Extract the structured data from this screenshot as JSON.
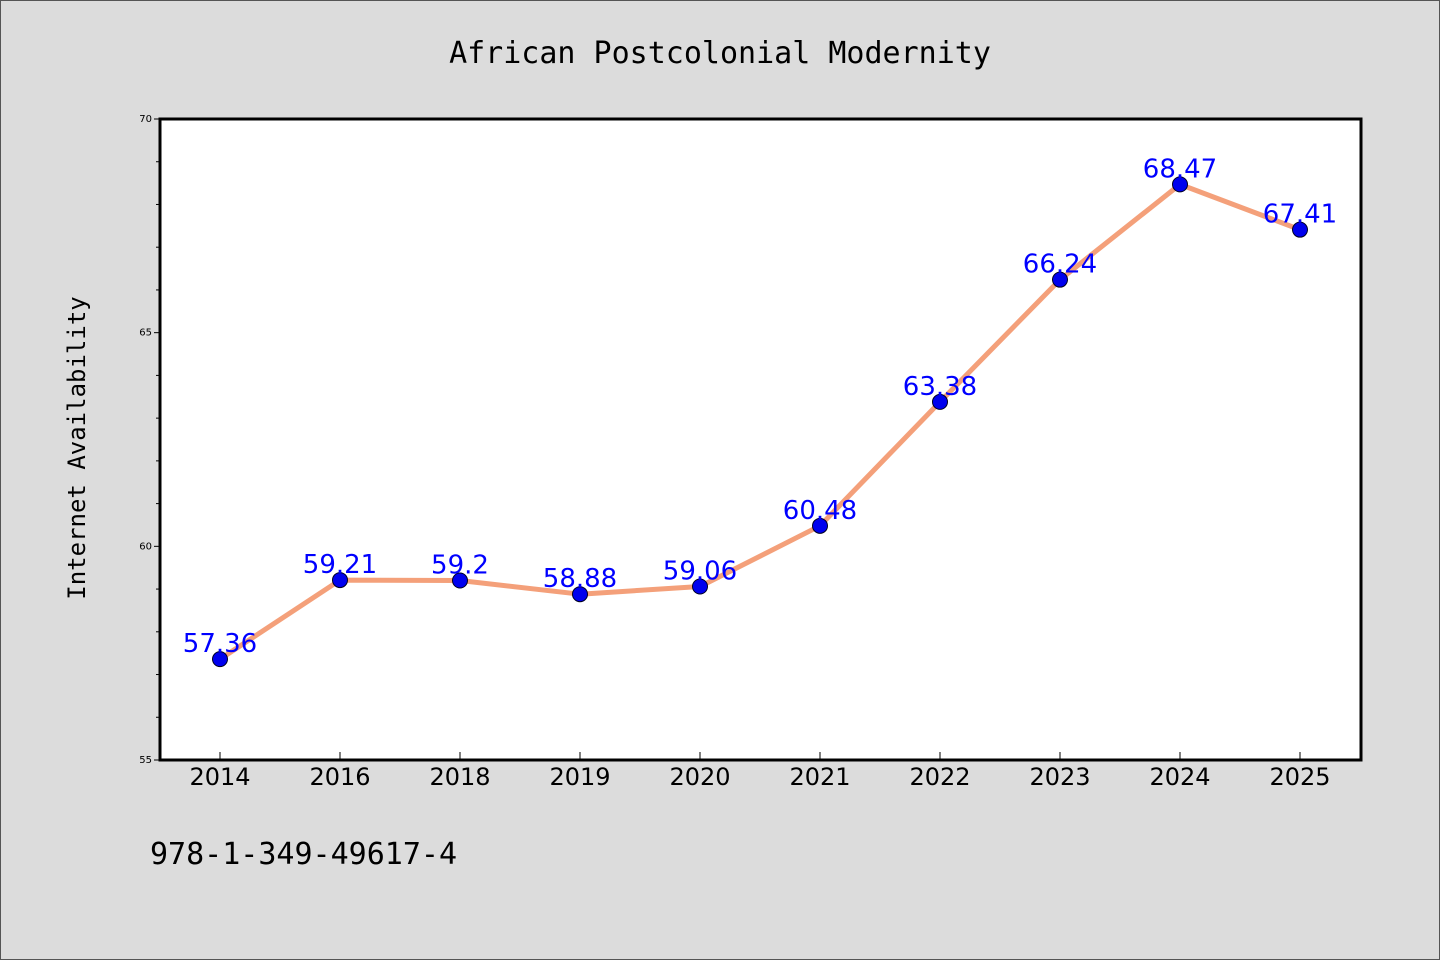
{
  "chart_data": {
    "type": "line",
    "title": "African Postcolonial Modernity",
    "xlabel": "",
    "ylabel": "Internet Availability",
    "categories": [
      "2014",
      "2016",
      "2018",
      "2019",
      "2020",
      "2021",
      "2022",
      "2023",
      "2024",
      "2025"
    ],
    "values": [
      57.36,
      59.21,
      59.2,
      58.88,
      59.06,
      60.48,
      63.38,
      66.24,
      68.47,
      67.41
    ],
    "data_labels": [
      "57.36",
      "59.21",
      "59.2",
      "58.88",
      "59.06",
      "60.48",
      "63.38",
      "66.24",
      "68.47",
      "67.41"
    ],
    "ylim": [
      55,
      70
    ],
    "yticks": [
      "55",
      "60",
      "65",
      "70"
    ],
    "grid": false,
    "legend": "none",
    "colors": {
      "line": "#f4a07a",
      "marker": "#0000ee",
      "label": "#0000ff",
      "background": "#dcdcdc",
      "plot_background": "#ffffff"
    }
  },
  "footer": {
    "isbn": "978-1-349-49617-4"
  }
}
